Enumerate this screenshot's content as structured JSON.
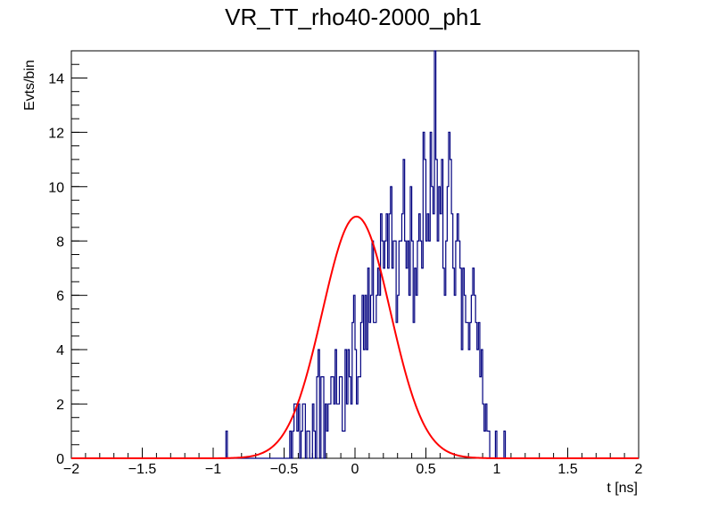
{
  "chart_data": {
    "type": "histogram",
    "title": "VR_TT_rho40-2000_ph1",
    "xlabel": "t [ns]",
    "ylabel": "Evts/bin",
    "xlim": [
      -2,
      2
    ],
    "ylim": [
      0,
      15
    ],
    "x_ticks": [
      -2,
      -1.5,
      -1,
      -0.5,
      0,
      0.5,
      1,
      1.5,
      2
    ],
    "x_tick_labels": [
      "−2",
      "−1.5",
      "−1",
      "−0.5",
      "0",
      "0.5",
      "1",
      "1.5",
      "2"
    ],
    "y_ticks": [
      0,
      2,
      4,
      6,
      8,
      10,
      12,
      14
    ],
    "y_tick_labels": [
      "0",
      "2",
      "4",
      "6",
      "8",
      "10",
      "12",
      "14"
    ],
    "series": [
      {
        "name": "histogram",
        "style": "step",
        "color": "#00007f",
        "bin_width": 0.01,
        "bin_start": -1.0,
        "counts": [
          0,
          0,
          0,
          0,
          0,
          0,
          0,
          0,
          0,
          1,
          0,
          0,
          0,
          0,
          0,
          0,
          0,
          0,
          0,
          0,
          0,
          0,
          0,
          0,
          0,
          0,
          0,
          0,
          0,
          0,
          0,
          0,
          0,
          0,
          0,
          0,
          0,
          0,
          0,
          0,
          0,
          0,
          0,
          0,
          0,
          0,
          0,
          0,
          0,
          0,
          0,
          0,
          0,
          0,
          1,
          0,
          1,
          2,
          2,
          1,
          2,
          0,
          1,
          2,
          2,
          0,
          1,
          1,
          0,
          0,
          2,
          1,
          0,
          3,
          4,
          0,
          3,
          3,
          0,
          2,
          1,
          2,
          2,
          3,
          3,
          2,
          4,
          2,
          2,
          3,
          3,
          1,
          1,
          4,
          2,
          4,
          3,
          2,
          5,
          6,
          4,
          2,
          3,
          3,
          5,
          6,
          4,
          6,
          4,
          7,
          5,
          6,
          8,
          5,
          5,
          6,
          7,
          6,
          9,
          8,
          7,
          8,
          9,
          7,
          9,
          10,
          7,
          8,
          8,
          5,
          6,
          8,
          8,
          9,
          11,
          8,
          7,
          8,
          6,
          10,
          8,
          5,
          7,
          6,
          8,
          9,
          8,
          7,
          12,
          11,
          8,
          9,
          8,
          12,
          10,
          9,
          15,
          11,
          8,
          10,
          9,
          11,
          7,
          6,
          8,
          10,
          12,
          11,
          9,
          7,
          6,
          8,
          9,
          8,
          7,
          4,
          7,
          6,
          5,
          5,
          4,
          5,
          6,
          7,
          6,
          5,
          4,
          5,
          3,
          4,
          2,
          1,
          2,
          1,
          1,
          0,
          0,
          0,
          0,
          1,
          0,
          0,
          0,
          0,
          0,
          1,
          0,
          0,
          0,
          0,
          0,
          0,
          0,
          0,
          0,
          0,
          0,
          0,
          0,
          0,
          0,
          0,
          0,
          0,
          0,
          0,
          0,
          0,
          0,
          0,
          0,
          0,
          0,
          0,
          0,
          0,
          0,
          0,
          0,
          0,
          0,
          0,
          0,
          0,
          0,
          0,
          0,
          0,
          0,
          0
        ],
        "counts_note": "histogram bin counts, clipped at axis top"
      },
      {
        "name": "gaussian fit",
        "style": "line",
        "color": "#ff0000",
        "amplitude": 8.9,
        "mean": 0.01,
        "sigma": 0.24
      }
    ]
  }
}
